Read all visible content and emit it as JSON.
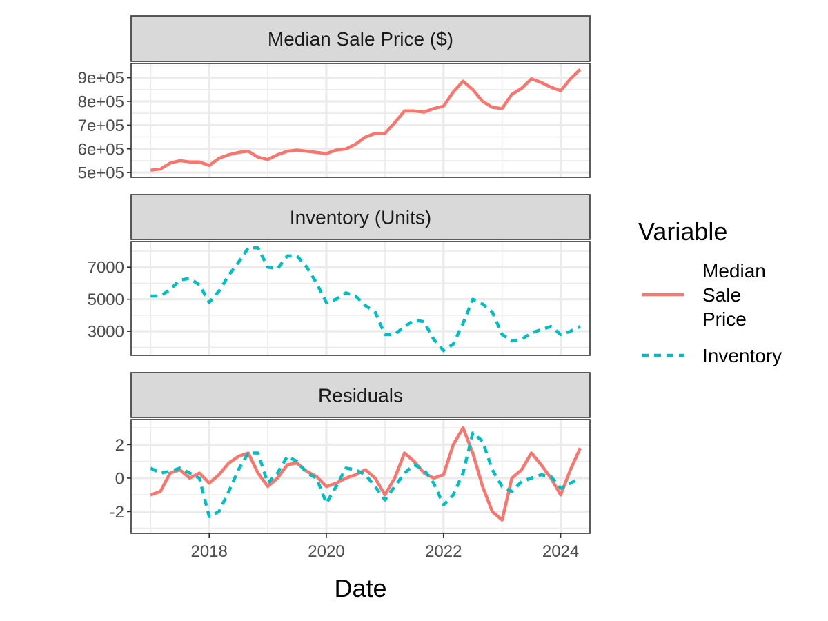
{
  "chart_data": {
    "type": "line",
    "xlabel": "Date",
    "x_ticks": [
      "2018",
      "2020",
      "2022",
      "2024"
    ],
    "x_range": [
      "2016-09-01",
      "2024-07-01"
    ],
    "legend": {
      "title": "Variable",
      "placement": "right",
      "entries": [
        {
          "label_lines": [
            "Median",
            "Sale",
            "Price"
          ],
          "color": "#F8766D",
          "dash": "solid"
        },
        {
          "label_lines": [
            "Inventory"
          ],
          "color": "#00BFC4",
          "dash": "dashed"
        }
      ]
    },
    "panels": [
      {
        "title": "Median Sale Price ($)",
        "ylim": [
          480000,
          960000
        ],
        "y_ticks": [
          {
            "value": 500000,
            "label": "5e+05"
          },
          {
            "value": 600000,
            "label": "6e+05"
          },
          {
            "value": 700000,
            "label": "7e+05"
          },
          {
            "value": 800000,
            "label": "8e+05"
          },
          {
            "value": 900000,
            "label": "9e+05"
          }
        ],
        "series": [
          {
            "color": "#F8766D",
            "dash": "solid",
            "points": [
              [
                "2017-01-01",
                510000
              ],
              [
                "2017-03-01",
                515000
              ],
              [
                "2017-05-01",
                540000
              ],
              [
                "2017-07-01",
                550000
              ],
              [
                "2017-09-01",
                545000
              ],
              [
                "2017-11-01",
                545000
              ],
              [
                "2018-01-01",
                530000
              ],
              [
                "2018-03-01",
                560000
              ],
              [
                "2018-05-01",
                575000
              ],
              [
                "2018-07-01",
                585000
              ],
              [
                "2018-09-01",
                590000
              ],
              [
                "2018-11-01",
                565000
              ],
              [
                "2019-01-01",
                555000
              ],
              [
                "2019-03-01",
                575000
              ],
              [
                "2019-05-01",
                590000
              ],
              [
                "2019-07-01",
                595000
              ],
              [
                "2019-09-01",
                590000
              ],
              [
                "2019-11-01",
                585000
              ],
              [
                "2020-01-01",
                580000
              ],
              [
                "2020-03-01",
                595000
              ],
              [
                "2020-05-01",
                600000
              ],
              [
                "2020-07-01",
                620000
              ],
              [
                "2020-09-01",
                650000
              ],
              [
                "2020-11-01",
                665000
              ],
              [
                "2021-01-01",
                665000
              ],
              [
                "2021-03-01",
                710000
              ],
              [
                "2021-05-01",
                760000
              ],
              [
                "2021-07-01",
                760000
              ],
              [
                "2021-09-01",
                755000
              ],
              [
                "2021-11-01",
                770000
              ],
              [
                "2022-01-01",
                780000
              ],
              [
                "2022-03-01",
                840000
              ],
              [
                "2022-05-01",
                885000
              ],
              [
                "2022-07-01",
                850000
              ],
              [
                "2022-09-01",
                800000
              ],
              [
                "2022-11-01",
                775000
              ],
              [
                "2023-01-01",
                770000
              ],
              [
                "2023-03-01",
                830000
              ],
              [
                "2023-05-01",
                855000
              ],
              [
                "2023-07-01",
                895000
              ],
              [
                "2023-09-01",
                880000
              ],
              [
                "2023-11-01",
                860000
              ],
              [
                "2024-01-01",
                845000
              ],
              [
                "2024-03-01",
                895000
              ],
              [
                "2024-05-01",
                935000
              ]
            ]
          }
        ]
      },
      {
        "title": "Inventory (Units)",
        "ylim": [
          1500,
          8600
        ],
        "y_ticks": [
          {
            "value": 3000,
            "label": "3000"
          },
          {
            "value": 5000,
            "label": "5000"
          },
          {
            "value": 7000,
            "label": "7000"
          }
        ],
        "series": [
          {
            "color": "#00BFC4",
            "dash": "dashed",
            "points": [
              [
                "2017-01-01",
                5200
              ],
              [
                "2017-03-01",
                5200
              ],
              [
                "2017-05-01",
                5600
              ],
              [
                "2017-07-01",
                6200
              ],
              [
                "2017-09-01",
                6300
              ],
              [
                "2017-11-01",
                5900
              ],
              [
                "2018-01-01",
                4800
              ],
              [
                "2018-03-01",
                5500
              ],
              [
                "2018-05-01",
                6500
              ],
              [
                "2018-07-01",
                7300
              ],
              [
                "2018-09-01",
                8200
              ],
              [
                "2018-11-01",
                8200
              ],
              [
                "2019-01-01",
                7000
              ],
              [
                "2019-03-01",
                6900
              ],
              [
                "2019-05-01",
                7700
              ],
              [
                "2019-07-01",
                7700
              ],
              [
                "2019-09-01",
                7000
              ],
              [
                "2019-11-01",
                6000
              ],
              [
                "2020-01-01",
                4800
              ],
              [
                "2020-03-01",
                5000
              ],
              [
                "2020-05-01",
                5400
              ],
              [
                "2020-07-01",
                5200
              ],
              [
                "2020-09-01",
                4600
              ],
              [
                "2020-11-01",
                4200
              ],
              [
                "2021-01-01",
                2800
              ],
              [
                "2021-03-01",
                2800
              ],
              [
                "2021-05-01",
                3300
              ],
              [
                "2021-07-01",
                3700
              ],
              [
                "2021-09-01",
                3600
              ],
              [
                "2021-11-01",
                2500
              ],
              [
                "2022-01-01",
                1800
              ],
              [
                "2022-03-01",
                2200
              ],
              [
                "2022-05-01",
                3500
              ],
              [
                "2022-07-01",
                5000
              ],
              [
                "2022-09-01",
                4700
              ],
              [
                "2022-11-01",
                4200
              ],
              [
                "2023-01-01",
                2800
              ],
              [
                "2023-03-01",
                2400
              ],
              [
                "2023-05-01",
                2500
              ],
              [
                "2023-07-01",
                2900
              ],
              [
                "2023-09-01",
                3100
              ],
              [
                "2023-11-01",
                3300
              ],
              [
                "2024-01-01",
                2800
              ],
              [
                "2024-03-01",
                3000
              ],
              [
                "2024-05-01",
                3300
              ]
            ]
          }
        ]
      },
      {
        "title": "Residuals",
        "ylim": [
          -3.3,
          3.5
        ],
        "y_ticks": [
          {
            "value": -2,
            "label": "-2"
          },
          {
            "value": 0,
            "label": "0"
          },
          {
            "value": 2,
            "label": "2"
          }
        ],
        "series": [
          {
            "color": "#F8766D",
            "dash": "solid",
            "points": [
              [
                "2017-01-01",
                -1.0
              ],
              [
                "2017-03-01",
                -0.8
              ],
              [
                "2017-05-01",
                0.3
              ],
              [
                "2017-07-01",
                0.5
              ],
              [
                "2017-09-01",
                0.0
              ],
              [
                "2017-11-01",
                0.3
              ],
              [
                "2018-01-01",
                -0.3
              ],
              [
                "2018-03-01",
                0.2
              ],
              [
                "2018-05-01",
                0.9
              ],
              [
                "2018-07-01",
                1.3
              ],
              [
                "2018-09-01",
                1.5
              ],
              [
                "2018-11-01",
                0.3
              ],
              [
                "2019-01-01",
                -0.5
              ],
              [
                "2019-03-01",
                0.0
              ],
              [
                "2019-05-01",
                0.8
              ],
              [
                "2019-07-01",
                0.9
              ],
              [
                "2019-09-01",
                0.4
              ],
              [
                "2019-11-01",
                0.1
              ],
              [
                "2020-01-01",
                -0.5
              ],
              [
                "2020-03-01",
                -0.3
              ],
              [
                "2020-05-01",
                0.0
              ],
              [
                "2020-07-01",
                0.2
              ],
              [
                "2020-09-01",
                0.5
              ],
              [
                "2020-11-01",
                0.0
              ],
              [
                "2021-01-01",
                -1.0
              ],
              [
                "2021-03-01",
                0.0
              ],
              [
                "2021-05-01",
                1.5
              ],
              [
                "2021-07-01",
                1.0
              ],
              [
                "2021-09-01",
                0.3
              ],
              [
                "2021-11-01",
                0.0
              ],
              [
                "2022-01-01",
                0.2
              ],
              [
                "2022-03-01",
                2.0
              ],
              [
                "2022-05-01",
                3.0
              ],
              [
                "2022-07-01",
                1.5
              ],
              [
                "2022-09-01",
                -0.5
              ],
              [
                "2022-11-01",
                -2.0
              ],
              [
                "2023-01-01",
                -2.5
              ],
              [
                "2023-03-01",
                0.0
              ],
              [
                "2023-05-01",
                0.5
              ],
              [
                "2023-07-01",
                1.5
              ],
              [
                "2023-09-01",
                0.8
              ],
              [
                "2023-11-01",
                0.0
              ],
              [
                "2024-01-01",
                -1.0
              ],
              [
                "2024-03-01",
                0.5
              ],
              [
                "2024-05-01",
                1.8
              ]
            ]
          },
          {
            "color": "#00BFC4",
            "dash": "dashed",
            "points": [
              [
                "2017-01-01",
                0.6
              ],
              [
                "2017-03-01",
                0.3
              ],
              [
                "2017-05-01",
                0.4
              ],
              [
                "2017-07-01",
                0.6
              ],
              [
                "2017-09-01",
                0.3
              ],
              [
                "2017-11-01",
                0.0
              ],
              [
                "2018-01-01",
                -2.3
              ],
              [
                "2018-03-01",
                -2.0
              ],
              [
                "2018-05-01",
                -0.8
              ],
              [
                "2018-07-01",
                0.5
              ],
              [
                "2018-09-01",
                1.5
              ],
              [
                "2018-11-01",
                1.5
              ],
              [
                "2019-01-01",
                -0.3
              ],
              [
                "2019-03-01",
                0.3
              ],
              [
                "2019-05-01",
                1.3
              ],
              [
                "2019-07-01",
                1.0
              ],
              [
                "2019-09-01",
                0.3
              ],
              [
                "2019-11-01",
                0.0
              ],
              [
                "2020-01-01",
                -1.5
              ],
              [
                "2020-03-01",
                -0.5
              ],
              [
                "2020-05-01",
                0.6
              ],
              [
                "2020-07-01",
                0.5
              ],
              [
                "2020-09-01",
                0.2
              ],
              [
                "2020-11-01",
                -0.5
              ],
              [
                "2021-01-01",
                -1.3
              ],
              [
                "2021-03-01",
                -0.5
              ],
              [
                "2021-05-01",
                0.3
              ],
              [
                "2021-07-01",
                0.8
              ],
              [
                "2021-09-01",
                0.5
              ],
              [
                "2021-11-01",
                -0.3
              ],
              [
                "2022-01-01",
                -1.6
              ],
              [
                "2022-03-01",
                -1.0
              ],
              [
                "2022-05-01",
                0.3
              ],
              [
                "2022-07-01",
                2.7
              ],
              [
                "2022-09-01",
                2.2
              ],
              [
                "2022-11-01",
                0.5
              ],
              [
                "2023-01-01",
                -0.5
              ],
              [
                "2023-03-01",
                -0.8
              ],
              [
                "2023-05-01",
                -0.2
              ],
              [
                "2023-07-01",
                0.0
              ],
              [
                "2023-09-01",
                0.2
              ],
              [
                "2023-11-01",
                0.1
              ],
              [
                "2024-01-01",
                -0.6
              ],
              [
                "2024-03-01",
                -0.3
              ],
              [
                "2024-05-01",
                0.0
              ]
            ]
          }
        ]
      }
    ]
  }
}
